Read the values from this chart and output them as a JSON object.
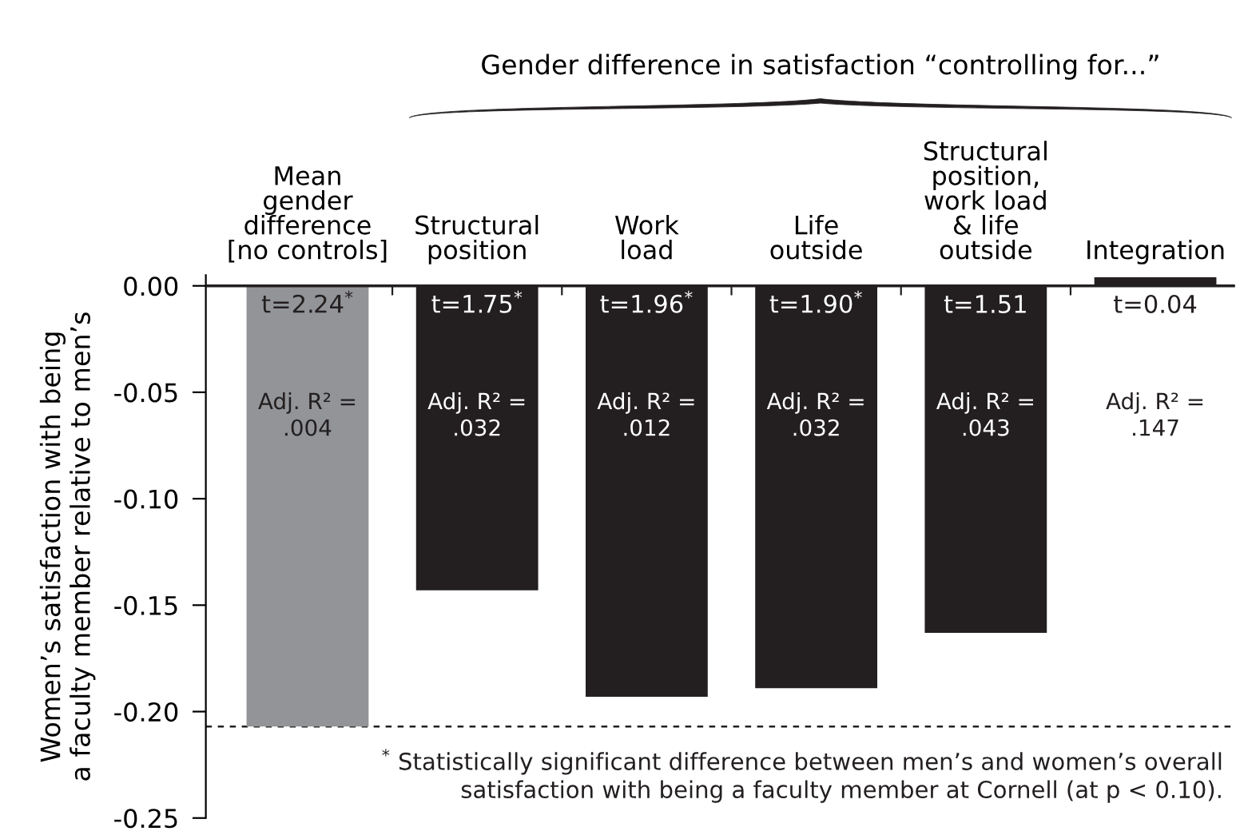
{
  "chart_data": {
    "type": "bar",
    "title": "Gender difference in satisfaction “controlling for...”",
    "ylabel": "Women’s satisfaction with being\na faculty member relative to men’s",
    "categories": [
      "Mean\ngender\ndifference\n[no controls]",
      "Structural\nposition",
      "Work\nload",
      "Life\noutside",
      "Structural\nposition,\nwork load\n& life\noutside",
      "Integration"
    ],
    "values": [
      -0.207,
      -0.143,
      -0.193,
      -0.189,
      -0.163,
      0.004
    ],
    "colors": [
      "#929497",
      "#231f20",
      "#231f20",
      "#231f20",
      "#231f20",
      "#231f20"
    ],
    "ylim": [
      -0.25,
      0.005
    ],
    "yticks": [
      {
        "value": 0,
        "label": "0.00"
      },
      {
        "value": -0.05,
        "label": "-0.05"
      },
      {
        "value": -0.1,
        "label": "-0.10"
      },
      {
        "value": -0.15,
        "label": "-0.15"
      },
      {
        "value": -0.2,
        "label": "-0.20"
      },
      {
        "value": -0.25,
        "label": "-0.25"
      }
    ],
    "grid": false,
    "legend": false,
    "ref_lines": [
      {
        "axis": "y",
        "value": -0.207,
        "color": "#231f20",
        "line_style": "dashed"
      }
    ],
    "annotations": [
      "t=2.24$^{*}$",
      "t=1.75$^{*}$",
      "t=1.96$^{*}$",
      "t=1.90$^{*}$",
      "t=1.51",
      "t=0.04",
      "Adj. R² =\n.004",
      "Adj. R² =\n.032",
      "Adj. R² =\n.012",
      "Adj. R² =\n.032",
      "Adj. R² =\n.043",
      "Adj. R² =\n.147",
      "$^{*}$ Statistically significant difference between men’s and women’s overall\nsatisfaction with being a faculty member at Cornell (at p < 0.10)."
    ]
  }
}
